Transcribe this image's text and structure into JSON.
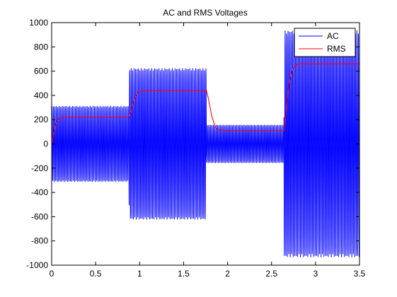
{
  "window": {
    "background": "#ffffff"
  },
  "chart_data": {
    "type": "line",
    "title": "AC and RMS Voltages",
    "xlabel": "",
    "ylabel": "",
    "xlim": [
      0,
      3.5
    ],
    "ylim": [
      -1000,
      1000
    ],
    "x_ticks": [
      "0",
      "0.5",
      "1",
      "1.5",
      "2",
      "2.5",
      "3",
      "3.5"
    ],
    "y_ticks": [
      "-1000",
      "-800",
      "-600",
      "-400",
      "-200",
      "0",
      "200",
      "400",
      "600",
      "800",
      "1000"
    ],
    "x_tick_values": [
      0,
      0.5,
      1,
      1.5,
      2,
      2.5,
      3,
      3.5
    ],
    "y_tick_values": [
      -1000,
      -800,
      -600,
      -400,
      -200,
      0,
      200,
      400,
      600,
      800,
      1000
    ],
    "grid": false,
    "legend_position": "top-right",
    "series": [
      {
        "name": "AC",
        "color": "#0000ff",
        "description": "sinusoid, ~60 Hz, amplitude stepped by segment",
        "segments": [
          {
            "x_start": 0.0,
            "x_end": 0.88,
            "amplitude": 311
          },
          {
            "x_start": 0.88,
            "x_end": 1.76,
            "amplitude": 622
          },
          {
            "x_start": 1.76,
            "x_end": 2.64,
            "amplitude": 156
          },
          {
            "x_start": 2.64,
            "x_end": 3.5,
            "amplitude": 933
          }
        ]
      },
      {
        "name": "RMS",
        "color": "#ff0000",
        "points": [
          [
            0.0,
            0
          ],
          [
            0.02,
            80
          ],
          [
            0.05,
            170
          ],
          [
            0.08,
            205
          ],
          [
            0.12,
            218
          ],
          [
            0.2,
            220
          ],
          [
            0.88,
            220
          ],
          [
            0.9,
            260
          ],
          [
            0.94,
            370
          ],
          [
            0.98,
            425
          ],
          [
            1.03,
            438
          ],
          [
            1.1,
            440
          ],
          [
            1.76,
            440
          ],
          [
            1.78,
            380
          ],
          [
            1.82,
            230
          ],
          [
            1.86,
            140
          ],
          [
            1.9,
            115
          ],
          [
            1.95,
            110
          ],
          [
            2.64,
            110
          ],
          [
            2.66,
            230
          ],
          [
            2.7,
            500
          ],
          [
            2.74,
            620
          ],
          [
            2.78,
            655
          ],
          [
            2.85,
            660
          ],
          [
            3.5,
            660
          ]
        ]
      }
    ]
  }
}
